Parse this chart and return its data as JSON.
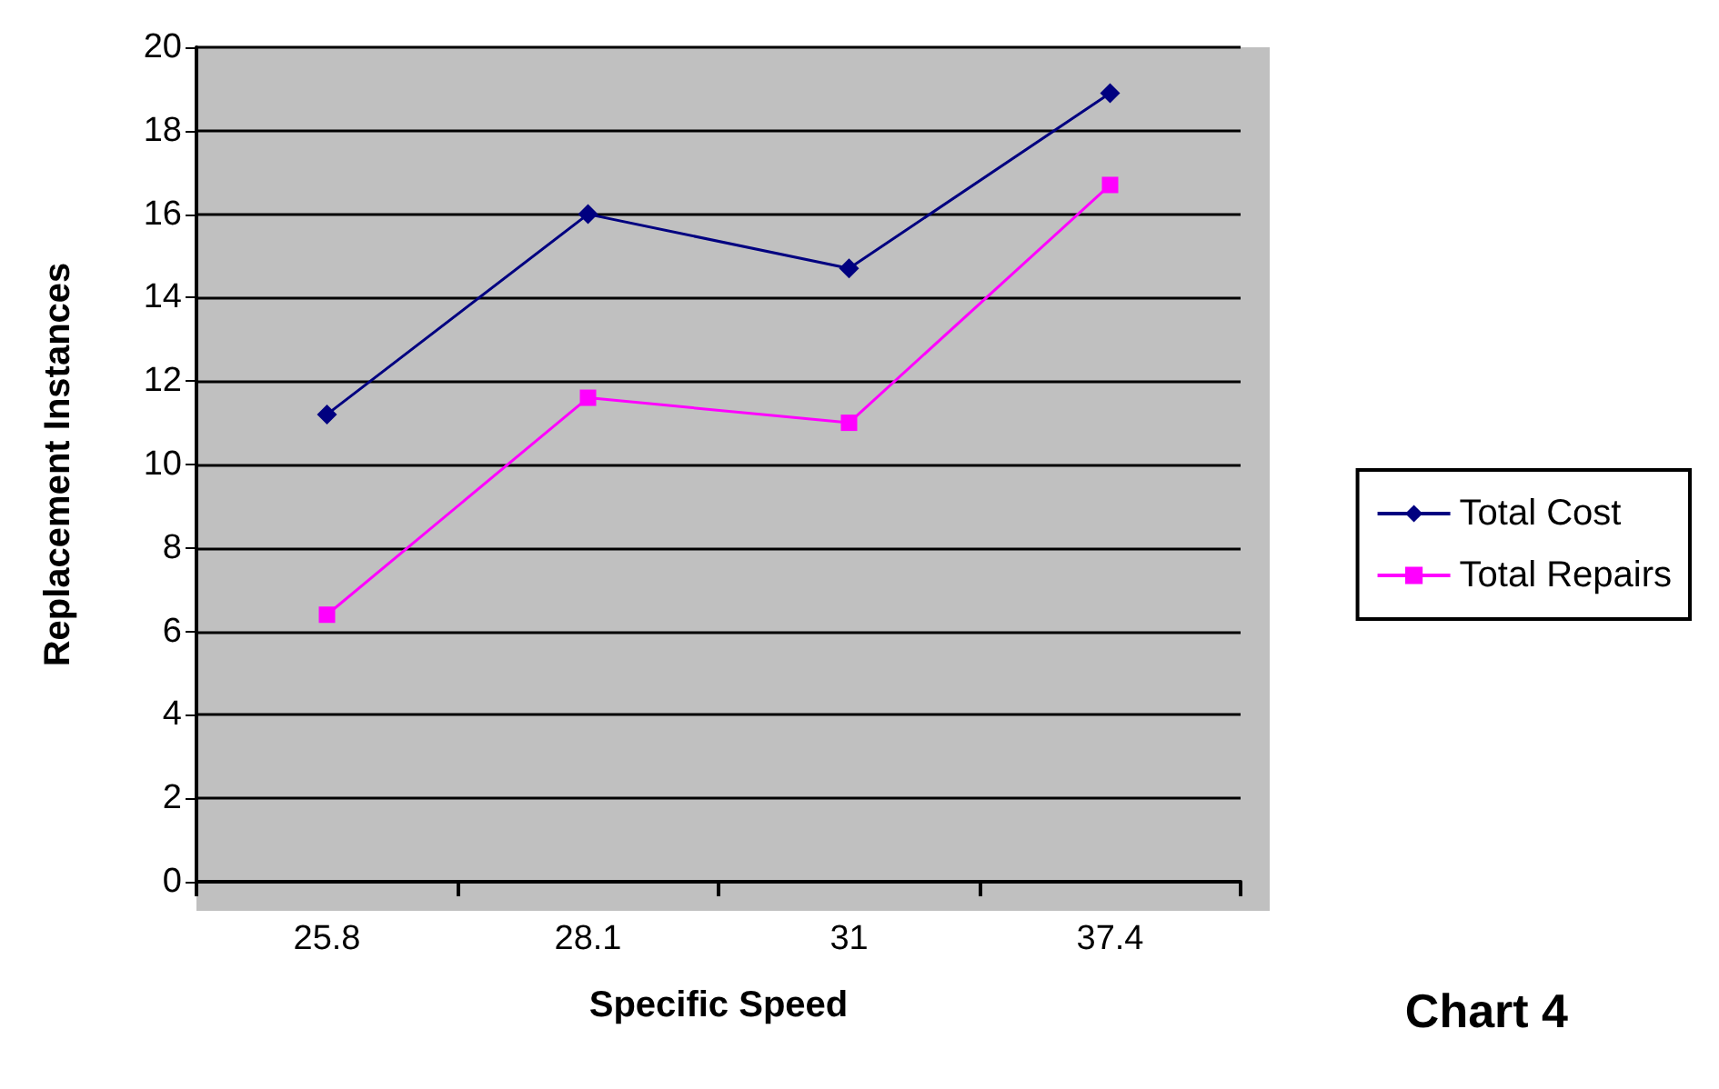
{
  "chart_data": {
    "type": "line",
    "xlabel": "Specific Speed",
    "ylabel": "Replacement Instances",
    "categories": [
      "25.8",
      "28.1",
      "31",
      "37.4"
    ],
    "series": [
      {
        "name": "Total Cost",
        "color": "#000080",
        "marker": "diamond",
        "values": [
          11.2,
          16.0,
          14.7,
          18.9
        ]
      },
      {
        "name": "Total Repairs",
        "color": "#ff00ff",
        "marker": "square",
        "values": [
          6.4,
          11.6,
          11.0,
          16.7
        ]
      }
    ],
    "ylim": [
      0,
      20
    ],
    "yticks": [
      0,
      2,
      4,
      6,
      8,
      10,
      12,
      14,
      16,
      18,
      20
    ],
    "grid": "y",
    "legend": "right",
    "annotations": [
      "Chart 4"
    ]
  }
}
